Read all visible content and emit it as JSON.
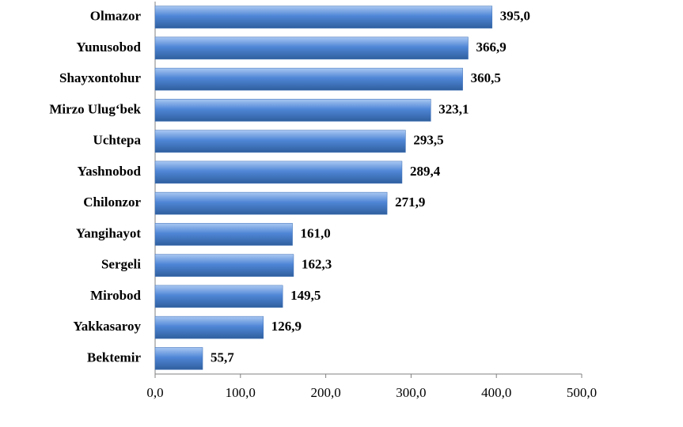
{
  "chart_data": {
    "type": "bar",
    "orientation": "horizontal",
    "categories": [
      "Olmazor",
      "Yunusobod",
      "Shayxontohur",
      "Mirzo Ulug‘bek",
      "Uchtepa",
      "Yashnobod",
      "Chilonzor",
      "Yangihayot",
      "Sergeli",
      "Mirobod",
      "Yakkasaroy",
      "Bektemir"
    ],
    "values": [
      395.0,
      366.9,
      360.5,
      323.1,
      293.5,
      289.4,
      271.9,
      161.0,
      162.3,
      149.5,
      126.9,
      55.7
    ],
    "value_labels": [
      "395,0",
      "366,9",
      "360,5",
      "323,1",
      "293,5",
      "289,4",
      "271,9",
      "161,0",
      "162,3",
      "149,5",
      "126,9",
      "55,7"
    ],
    "color": "#4f86d6",
    "xlim": [
      0,
      500
    ],
    "xticks": [
      {
        "value": 0,
        "label": "0,0"
      },
      {
        "value": 100,
        "label": "100,0"
      },
      {
        "value": 200,
        "label": "200,0"
      },
      {
        "value": 300,
        "label": "300,0"
      },
      {
        "value": 400,
        "label": "400,0"
      },
      {
        "value": 500,
        "label": "500,0"
      }
    ],
    "grid": false
  }
}
